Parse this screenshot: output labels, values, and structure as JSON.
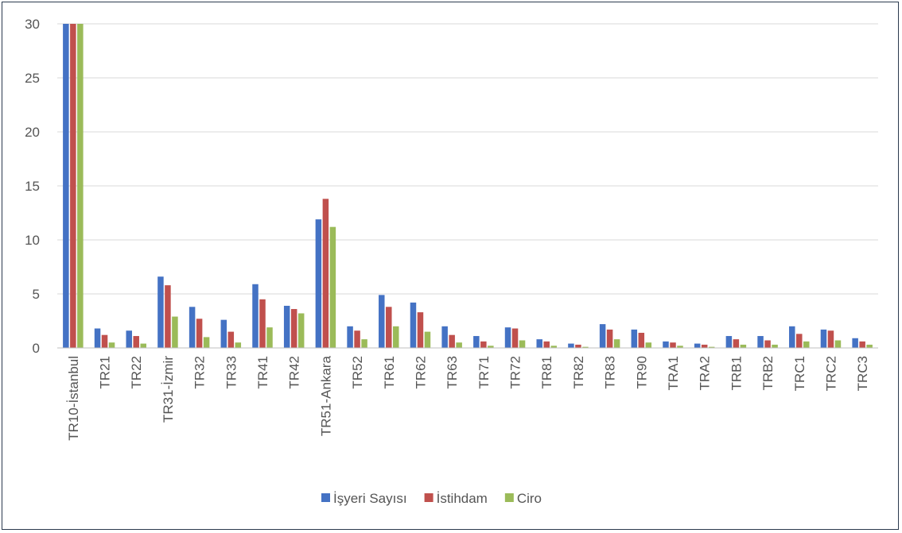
{
  "chart_data": {
    "type": "bar",
    "title": "",
    "xlabel": "",
    "ylabel": "",
    "ylim": [
      0,
      30
    ],
    "yticks": [
      "0",
      "5",
      "10",
      "15",
      "20",
      "25",
      "30"
    ],
    "grid": true,
    "legend_position": "bottom",
    "categories": [
      "TR10-İstanbul",
      "TR21",
      "TR22",
      "TR31-İzmir",
      "TR32",
      "TR33",
      "TR41",
      "TR42",
      "TR51-Ankara",
      "TR52",
      "TR61",
      "TR62",
      "TR63",
      "TR71",
      "TR72",
      "TR81",
      "TR82",
      "TR83",
      "TR90",
      "TRA1",
      "TRA2",
      "TRB1",
      "TRB2",
      "TRC1",
      "TRC2",
      "TRC3"
    ],
    "series": [
      {
        "name": "İşyeri Sayısı",
        "color": "#4472c4",
        "values": [
          30,
          1.8,
          1.6,
          6.6,
          3.8,
          2.6,
          5.9,
          3.9,
          11.9,
          2.0,
          4.9,
          4.2,
          2.0,
          1.1,
          1.9,
          0.8,
          0.4,
          2.2,
          1.7,
          0.6,
          0.4,
          1.1,
          1.1,
          2.0,
          1.7,
          0.9
        ]
      },
      {
        "name": "İstihdam",
        "color": "#c0504d",
        "values": [
          30,
          1.2,
          1.1,
          5.8,
          2.7,
          1.5,
          4.5,
          3.6,
          13.8,
          1.6,
          3.8,
          3.3,
          1.2,
          0.6,
          1.8,
          0.6,
          0.3,
          1.7,
          1.4,
          0.5,
          0.3,
          0.8,
          0.7,
          1.3,
          1.6,
          0.6
        ]
      },
      {
        "name": "Ciro",
        "color": "#9bbb59",
        "values": [
          30,
          0.5,
          0.4,
          2.9,
          1.0,
          0.5,
          1.9,
          3.2,
          11.2,
          0.8,
          2.0,
          1.5,
          0.5,
          0.2,
          0.7,
          0.2,
          0.1,
          0.8,
          0.5,
          0.2,
          0.1,
          0.3,
          0.3,
          0.6,
          0.7,
          0.3
        ]
      }
    ]
  }
}
